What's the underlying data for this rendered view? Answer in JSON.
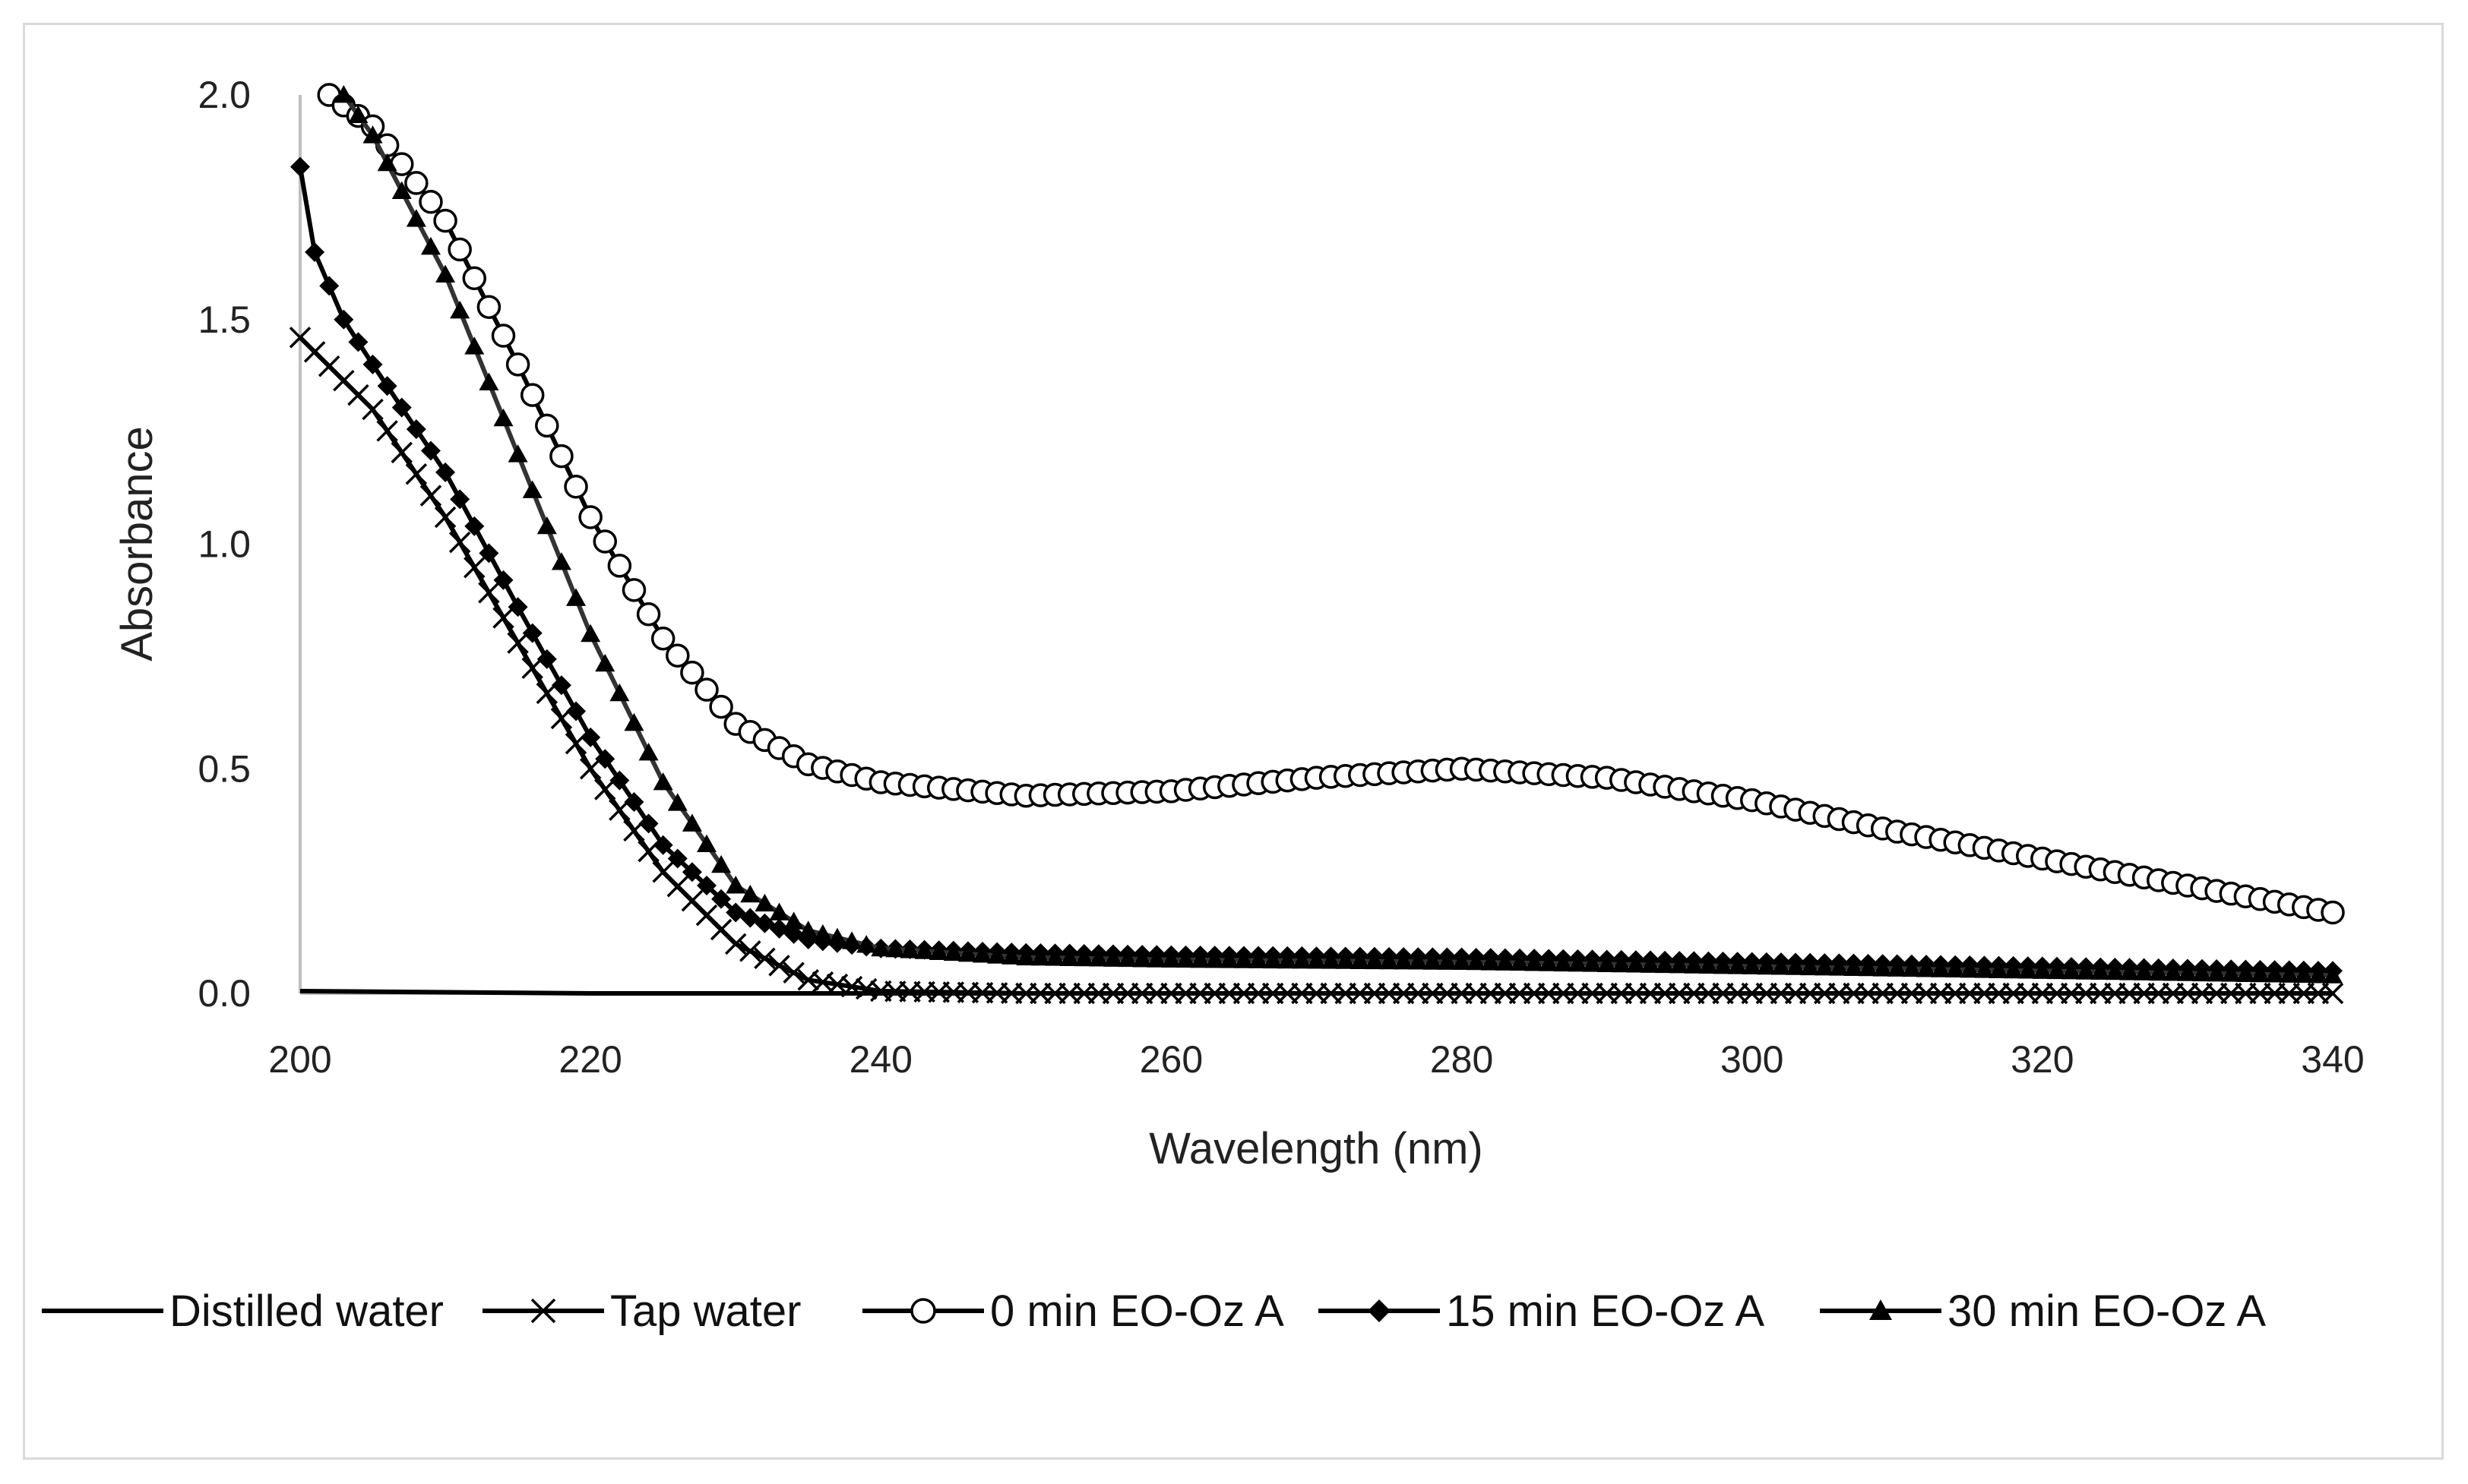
{
  "chart_data": {
    "type": "line",
    "title": "",
    "xlabel": "Wavelength (nm)",
    "ylabel": "Absorbance",
    "xlim": [
      200,
      340
    ],
    "ylim": [
      0,
      2.0
    ],
    "x_ticks": [
      "200",
      "220",
      "240",
      "260",
      "280",
      "300",
      "320",
      "340"
    ],
    "y_ticks": [
      "0.0",
      "0.5",
      "1.0",
      "1.5",
      "2.0"
    ],
    "grid": false,
    "legend_position": "bottom",
    "series": [
      {
        "name": "Distilled water",
        "marker": "none",
        "points": [
          [
            200,
            0.005
          ],
          [
            220,
            0.0
          ],
          [
            240,
            0.0
          ],
          [
            340,
            0.0
          ]
        ]
      },
      {
        "name": "Tap water",
        "marker": "x",
        "points": [
          [
            200,
            1.46
          ],
          [
            205,
            1.3
          ],
          [
            210,
            1.06
          ],
          [
            215,
            0.78
          ],
          [
            220,
            0.5
          ],
          [
            225,
            0.27
          ],
          [
            230,
            0.11
          ],
          [
            235,
            0.03
          ],
          [
            240,
            0.005
          ],
          [
            250,
            0.0
          ],
          [
            280,
            0.0
          ],
          [
            340,
            0.0
          ]
        ]
      },
      {
        "name": "0 min EO-Oz A",
        "marker": "open-circle",
        "points": [
          [
            202,
            2.0
          ],
          [
            205,
            1.93
          ],
          [
            210,
            1.72
          ],
          [
            215,
            1.4
          ],
          [
            220,
            1.06
          ],
          [
            225,
            0.79
          ],
          [
            230,
            0.6
          ],
          [
            235,
            0.51
          ],
          [
            240,
            0.47
          ],
          [
            250,
            0.44
          ],
          [
            260,
            0.45
          ],
          [
            270,
            0.48
          ],
          [
            280,
            0.5
          ],
          [
            290,
            0.48
          ],
          [
            300,
            0.43
          ],
          [
            310,
            0.36
          ],
          [
            320,
            0.3
          ],
          [
            330,
            0.24
          ],
          [
            340,
            0.18
          ]
        ]
      },
      {
        "name": "15 min EO-Oz A",
        "marker": "filled-diamond",
        "points": [
          [
            200,
            1.84
          ],
          [
            201,
            1.65
          ],
          [
            203,
            1.5
          ],
          [
            205,
            1.4
          ],
          [
            210,
            1.16
          ],
          [
            215,
            0.86
          ],
          [
            220,
            0.57
          ],
          [
            225,
            0.33
          ],
          [
            230,
            0.18
          ],
          [
            235,
            0.12
          ],
          [
            240,
            0.1
          ],
          [
            250,
            0.09
          ],
          [
            260,
            0.085
          ],
          [
            280,
            0.08
          ],
          [
            300,
            0.07
          ],
          [
            320,
            0.06
          ],
          [
            340,
            0.05
          ]
        ]
      },
      {
        "name": "30 min EO-Oz A",
        "marker": "filled-triangle",
        "points": [
          [
            203,
            2.0
          ],
          [
            205,
            1.91
          ],
          [
            210,
            1.6
          ],
          [
            215,
            1.2
          ],
          [
            220,
            0.8
          ],
          [
            225,
            0.47
          ],
          [
            230,
            0.24
          ],
          [
            235,
            0.14
          ],
          [
            240,
            0.1
          ],
          [
            250,
            0.08
          ],
          [
            260,
            0.075
          ],
          [
            280,
            0.07
          ],
          [
            300,
            0.06
          ],
          [
            320,
            0.05
          ],
          [
            340,
            0.04
          ]
        ]
      }
    ]
  }
}
